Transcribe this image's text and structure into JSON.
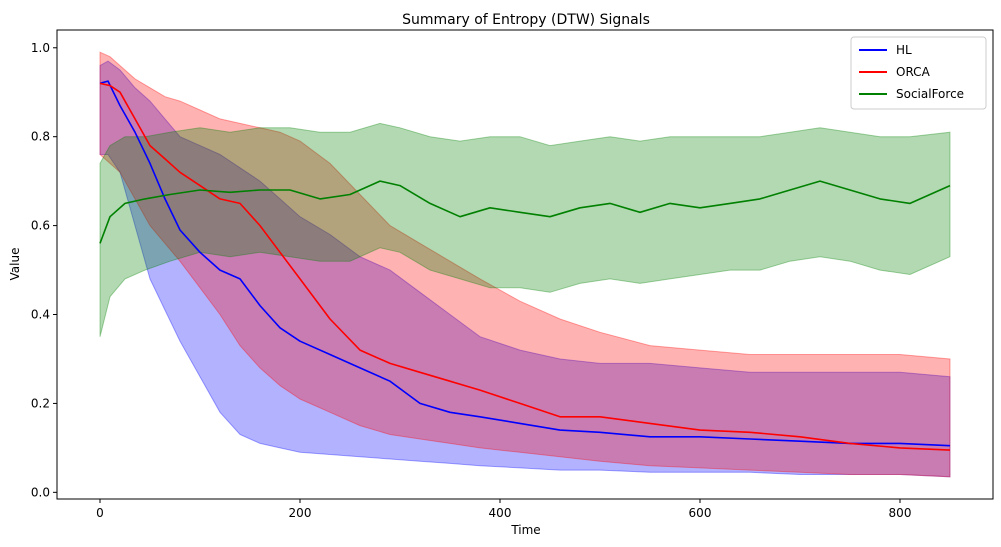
{
  "chart_data": {
    "type": "line",
    "title": "Summary of Entropy (DTW) Signals",
    "xlabel": "Time",
    "ylabel": "Value",
    "xlim": [
      -43,
      893
    ],
    "ylim": [
      -0.015,
      1.04
    ],
    "xticks": [
      0,
      200,
      400,
      600,
      800
    ],
    "xtick_labels": [
      "0",
      "200",
      "400",
      "600",
      "800"
    ],
    "yticks": [
      0.0,
      0.2,
      0.4,
      0.6,
      0.8,
      1.0
    ],
    "ytick_labels": [
      "0.0",
      "0.2",
      "0.4",
      "0.6",
      "0.8",
      "1.0"
    ],
    "grid": false,
    "legend_position": "top-right",
    "series": [
      {
        "name": "HL",
        "color": "#0000ff",
        "band_color": "#0000ff",
        "x": [
          0,
          8,
          20,
          35,
          50,
          65,
          80,
          100,
          120,
          140,
          160,
          180,
          200,
          230,
          260,
          290,
          320,
          350,
          380,
          420,
          460,
          500,
          550,
          600,
          650,
          700,
          750,
          800,
          850
        ],
        "mean": [
          0.92,
          0.925,
          0.87,
          0.81,
          0.74,
          0.66,
          0.59,
          0.54,
          0.5,
          0.48,
          0.42,
          0.37,
          0.34,
          0.31,
          0.28,
          0.25,
          0.2,
          0.18,
          0.17,
          0.155,
          0.14,
          0.135,
          0.125,
          0.125,
          0.12,
          0.115,
          0.11,
          0.11,
          0.105
        ],
        "lower": [
          0.76,
          0.76,
          0.72,
          0.6,
          0.48,
          0.41,
          0.34,
          0.26,
          0.18,
          0.13,
          0.11,
          0.1,
          0.09,
          0.085,
          0.08,
          0.075,
          0.07,
          0.065,
          0.06,
          0.055,
          0.05,
          0.05,
          0.045,
          0.045,
          0.045,
          0.04,
          0.04,
          0.04,
          0.035
        ],
        "upper": [
          0.96,
          0.97,
          0.95,
          0.91,
          0.88,
          0.84,
          0.8,
          0.78,
          0.76,
          0.73,
          0.7,
          0.66,
          0.62,
          0.58,
          0.53,
          0.5,
          0.45,
          0.4,
          0.35,
          0.32,
          0.3,
          0.29,
          0.29,
          0.28,
          0.27,
          0.27,
          0.27,
          0.27,
          0.26
        ]
      },
      {
        "name": "ORCA",
        "color": "#ff0000",
        "band_color": "#ff0000",
        "x": [
          0,
          10,
          20,
          35,
          50,
          65,
          80,
          100,
          120,
          140,
          160,
          180,
          200,
          230,
          260,
          290,
          320,
          350,
          380,
          420,
          460,
          500,
          550,
          600,
          650,
          700,
          750,
          800,
          850
        ],
        "mean": [
          0.92,
          0.915,
          0.9,
          0.84,
          0.78,
          0.75,
          0.72,
          0.69,
          0.66,
          0.65,
          0.6,
          0.54,
          0.48,
          0.39,
          0.32,
          0.29,
          0.27,
          0.25,
          0.23,
          0.2,
          0.17,
          0.17,
          0.155,
          0.14,
          0.135,
          0.125,
          0.11,
          0.1,
          0.095
        ],
        "lower": [
          0.76,
          0.74,
          0.72,
          0.66,
          0.6,
          0.56,
          0.52,
          0.46,
          0.4,
          0.33,
          0.28,
          0.24,
          0.21,
          0.18,
          0.15,
          0.13,
          0.12,
          0.11,
          0.1,
          0.09,
          0.08,
          0.07,
          0.06,
          0.055,
          0.05,
          0.045,
          0.04,
          0.04,
          0.035
        ],
        "upper": [
          0.99,
          0.98,
          0.96,
          0.93,
          0.91,
          0.89,
          0.88,
          0.86,
          0.84,
          0.83,
          0.82,
          0.81,
          0.79,
          0.74,
          0.67,
          0.6,
          0.56,
          0.52,
          0.48,
          0.43,
          0.39,
          0.36,
          0.33,
          0.32,
          0.31,
          0.31,
          0.31,
          0.31,
          0.3
        ]
      },
      {
        "name": "SocialForce",
        "color": "#008000",
        "band_color": "#008000",
        "x": [
          0,
          10,
          25,
          45,
          70,
          100,
          130,
          160,
          190,
          220,
          250,
          280,
          300,
          330,
          360,
          390,
          420,
          450,
          480,
          510,
          540,
          570,
          600,
          630,
          660,
          690,
          720,
          750,
          780,
          810,
          850
        ],
        "mean": [
          0.56,
          0.62,
          0.65,
          0.66,
          0.67,
          0.68,
          0.675,
          0.68,
          0.68,
          0.66,
          0.67,
          0.7,
          0.69,
          0.65,
          0.62,
          0.64,
          0.63,
          0.62,
          0.64,
          0.65,
          0.63,
          0.65,
          0.64,
          0.65,
          0.66,
          0.68,
          0.7,
          0.68,
          0.66,
          0.65,
          0.69
        ],
        "lower": [
          0.35,
          0.44,
          0.48,
          0.5,
          0.52,
          0.54,
          0.53,
          0.54,
          0.53,
          0.52,
          0.52,
          0.55,
          0.54,
          0.5,
          0.48,
          0.46,
          0.46,
          0.45,
          0.47,
          0.48,
          0.47,
          0.48,
          0.49,
          0.5,
          0.5,
          0.52,
          0.53,
          0.52,
          0.5,
          0.49,
          0.53
        ],
        "upper": [
          0.74,
          0.78,
          0.8,
          0.8,
          0.81,
          0.82,
          0.81,
          0.82,
          0.82,
          0.81,
          0.81,
          0.83,
          0.82,
          0.8,
          0.79,
          0.8,
          0.8,
          0.78,
          0.79,
          0.8,
          0.79,
          0.8,
          0.8,
          0.8,
          0.8,
          0.81,
          0.82,
          0.81,
          0.8,
          0.8,
          0.81
        ]
      }
    ]
  }
}
